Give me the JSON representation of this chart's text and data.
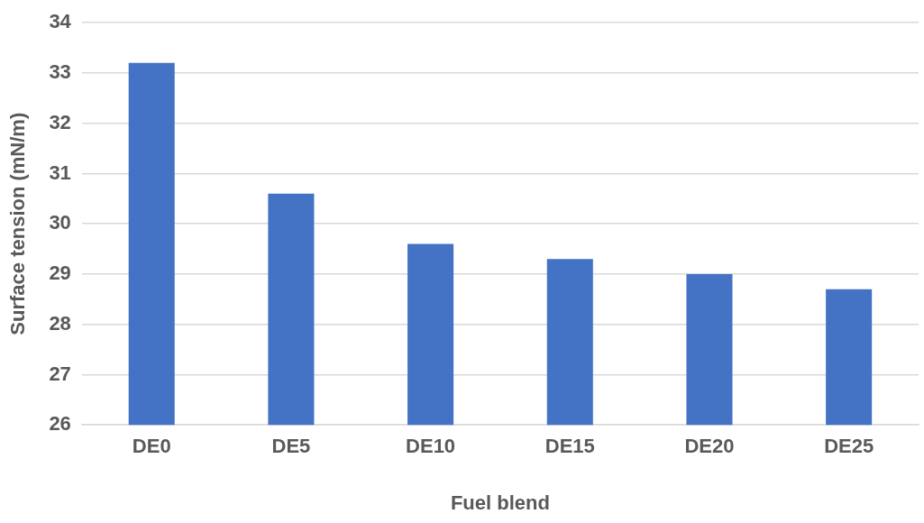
{
  "chart_data": {
    "type": "bar",
    "xlabel": "Fuel blend",
    "ylabel": "Surface tension (mN/m)",
    "categories": [
      "DE0",
      "DE5",
      "DE10",
      "DE15",
      "DE20",
      "DE25"
    ],
    "values": [
      33.2,
      30.6,
      29.6,
      29.3,
      29.0,
      28.7
    ],
    "color": "#4472c4",
    "ylim": [
      26,
      34
    ],
    "yticks": [
      26,
      27,
      28,
      29,
      30,
      31,
      32,
      33,
      34
    ],
    "grid": "y",
    "legend": false
  }
}
